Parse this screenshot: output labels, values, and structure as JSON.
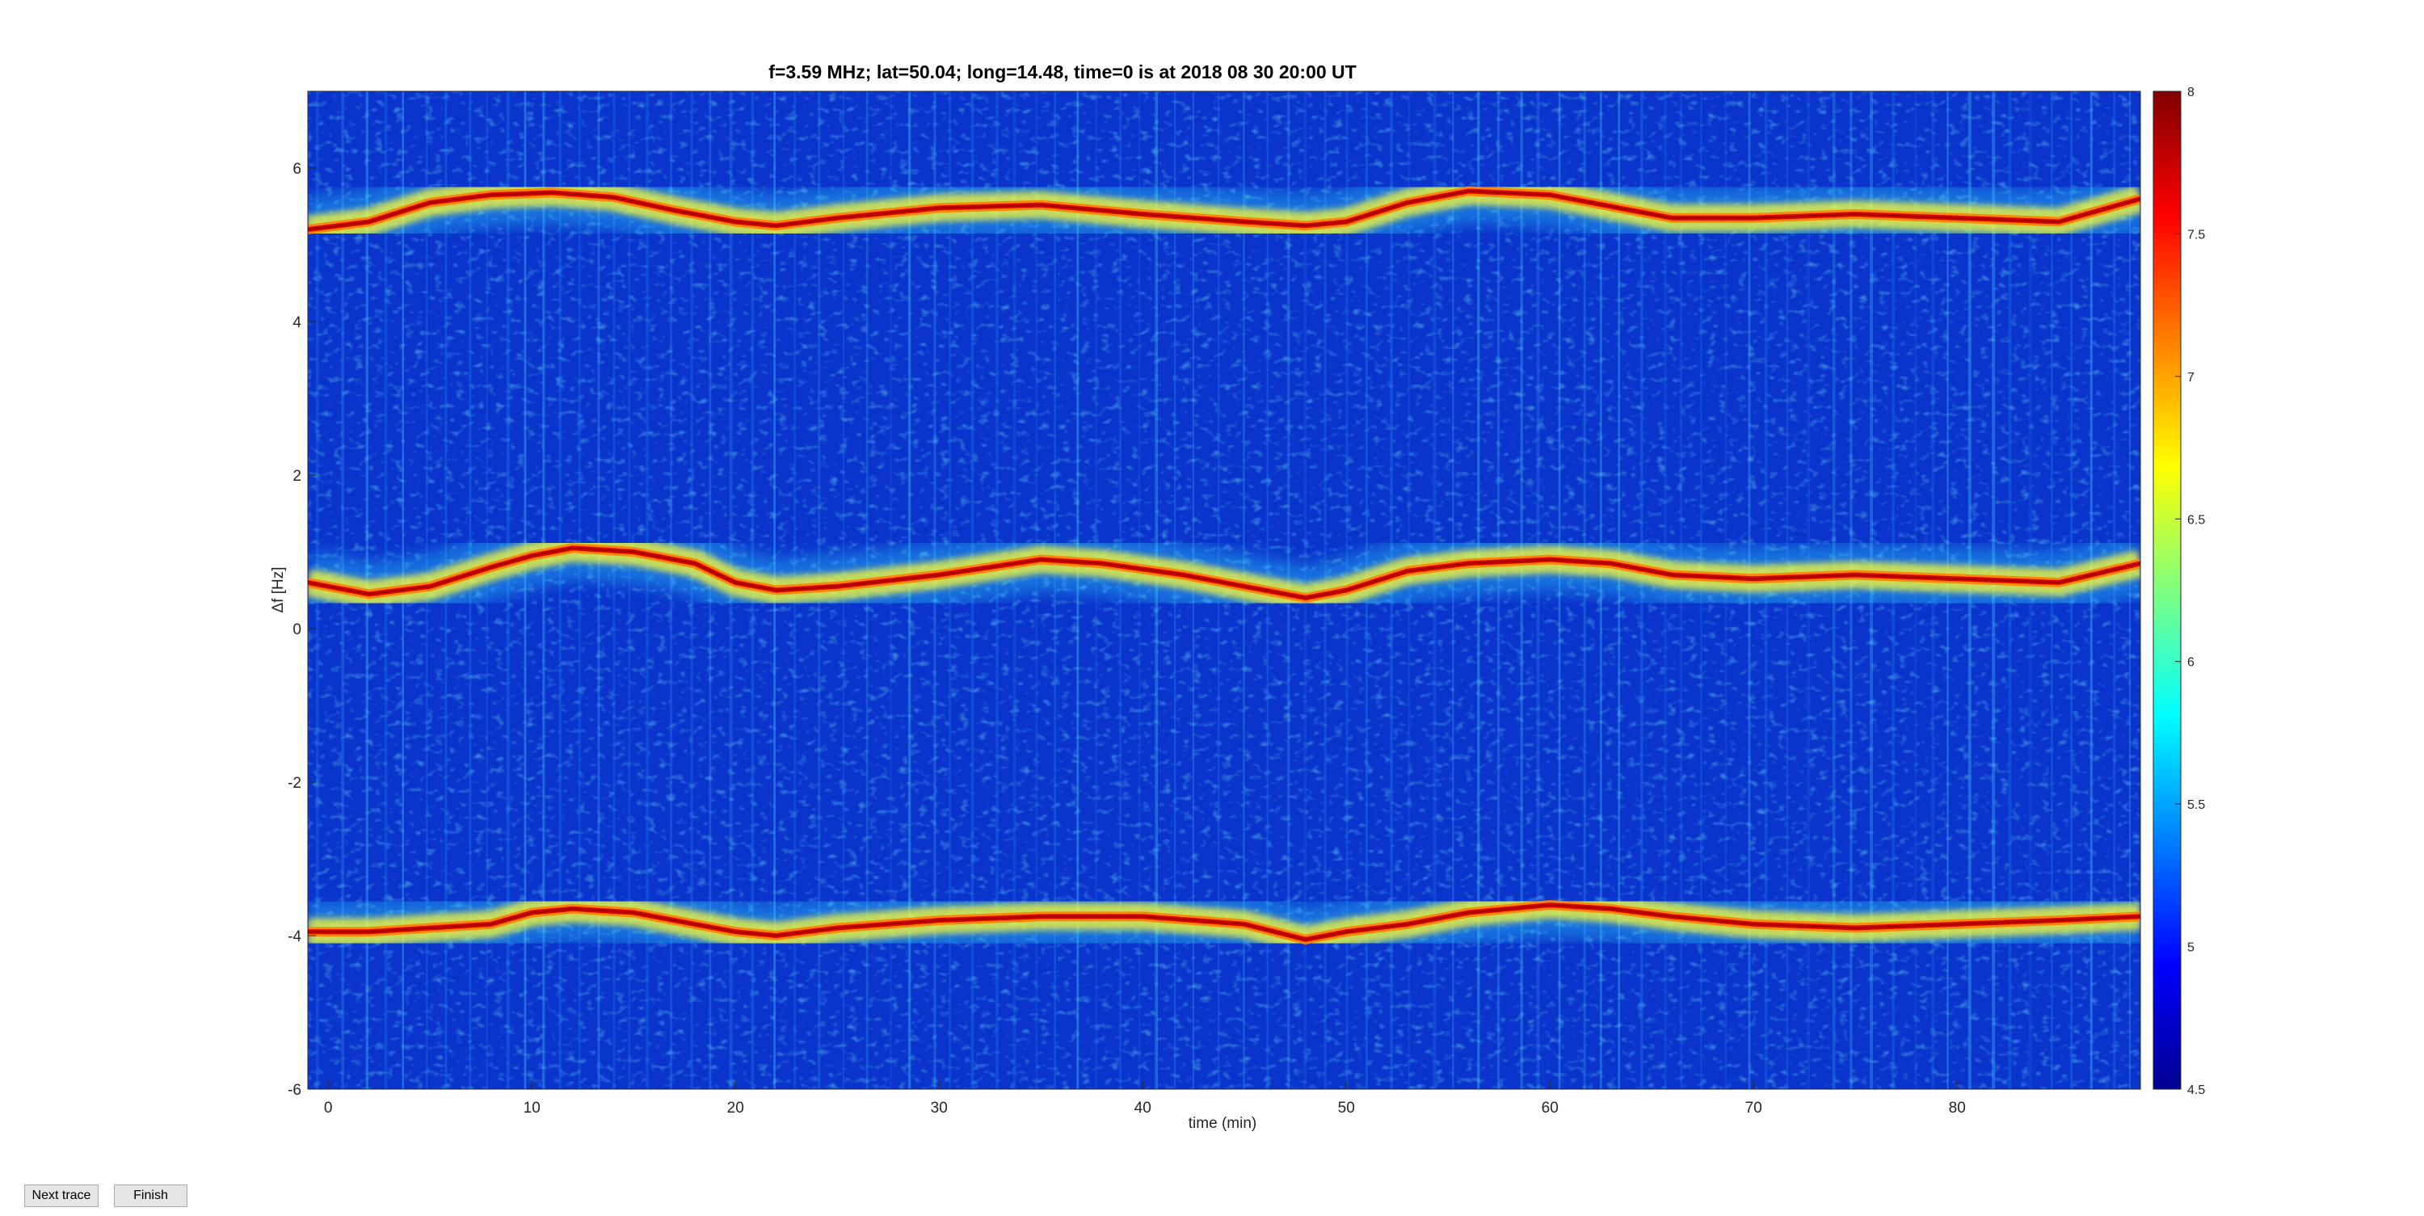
{
  "buttons": {
    "next_label": "Next trace",
    "finish_label": "Finish"
  },
  "chart_data": {
    "type": "heatmap",
    "title": "f=3.59 MHz;  lat=50.04; long=14.48, time=0 is at 2018 08 30 20:00 UT",
    "xlabel": "time (min)",
    "ylabel": "Δf [Hz]",
    "xlim": [
      -1,
      89
    ],
    "ylim": [
      -6,
      7
    ],
    "xticks": [
      0,
      10,
      20,
      30,
      40,
      50,
      60,
      70,
      80
    ],
    "yticks": [
      -6,
      -4,
      -2,
      0,
      2,
      4,
      6
    ],
    "colorbar": {
      "colormap": "jet",
      "clim": [
        4.5,
        8
      ],
      "ticks": [
        "4.5",
        "5",
        "5.5",
        "6",
        "6.5",
        "7",
        "7.5",
        "8"
      ]
    },
    "grid": false,
    "traces": [
      {
        "x": [
          -1,
          2,
          5,
          8,
          11,
          14,
          17,
          20,
          22,
          25,
          30,
          35,
          40,
          45,
          48,
          50,
          53,
          56,
          60,
          63,
          66,
          70,
          75,
          80,
          85,
          89
        ],
        "y": [
          5.2,
          5.3,
          5.55,
          5.65,
          5.68,
          5.62,
          5.45,
          5.3,
          5.25,
          5.35,
          5.48,
          5.52,
          5.4,
          5.3,
          5.25,
          5.3,
          5.55,
          5.7,
          5.65,
          5.5,
          5.35,
          5.35,
          5.4,
          5.35,
          5.3,
          5.6
        ]
      },
      {
        "x": [
          -1,
          2,
          5,
          8,
          10,
          12,
          15,
          18,
          20,
          22,
          25,
          30,
          35,
          38,
          42,
          45,
          48,
          50,
          53,
          56,
          60,
          63,
          66,
          70,
          75,
          80,
          85,
          89
        ],
        "y": [
          0.6,
          0.45,
          0.55,
          0.8,
          0.95,
          1.05,
          1.0,
          0.85,
          0.6,
          0.5,
          0.55,
          0.7,
          0.9,
          0.85,
          0.7,
          0.55,
          0.4,
          0.5,
          0.75,
          0.85,
          0.9,
          0.85,
          0.7,
          0.65,
          0.7,
          0.65,
          0.6,
          0.85
        ]
      },
      {
        "x": [
          -1,
          2,
          5,
          8,
          10,
          12,
          15,
          18,
          20,
          22,
          25,
          30,
          35,
          40,
          45,
          48,
          50,
          53,
          56,
          60,
          63,
          66,
          70,
          75,
          80,
          85,
          89
        ],
        "y": [
          -3.95,
          -3.95,
          -3.9,
          -3.85,
          -3.7,
          -3.65,
          -3.7,
          -3.85,
          -3.95,
          -4.0,
          -3.9,
          -3.8,
          -3.75,
          -3.75,
          -3.85,
          -4.05,
          -3.95,
          -3.85,
          -3.7,
          -3.6,
          -3.65,
          -3.75,
          -3.85,
          -3.9,
          -3.85,
          -3.8,
          -3.75
        ]
      }
    ]
  }
}
